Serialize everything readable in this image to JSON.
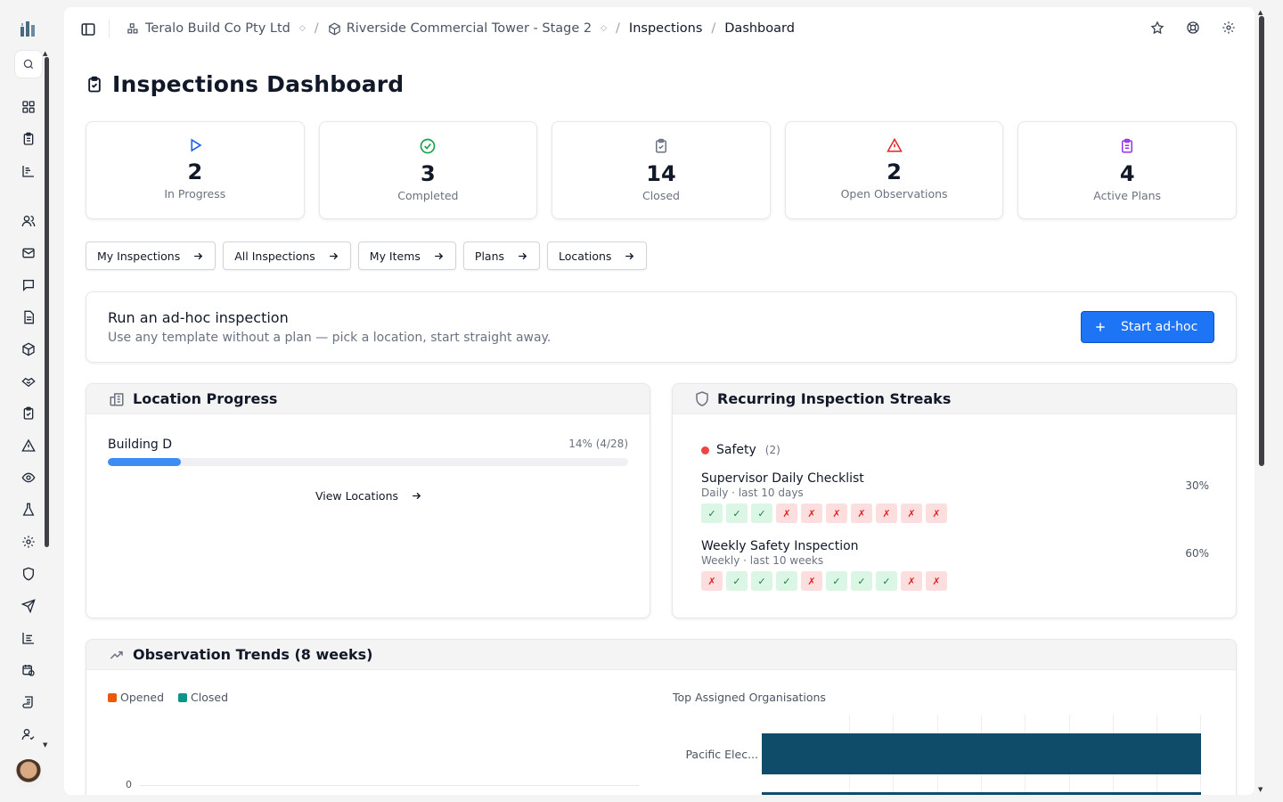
{
  "breadcrumb": {
    "org": "Teralo Build Co Pty Ltd",
    "project": "Riverside Commercial Tower - Stage 2",
    "section": "Inspections",
    "page": "Dashboard"
  },
  "page": {
    "title": "Inspections Dashboard"
  },
  "stats": [
    {
      "value": "2",
      "label": "In Progress",
      "icon": "play-icon",
      "color": "#2563eb"
    },
    {
      "value": "3",
      "label": "Completed",
      "icon": "check-circle-icon",
      "color": "#16a34a"
    },
    {
      "value": "14",
      "label": "Closed",
      "icon": "clipboard-check-icon",
      "color": "#6b7280"
    },
    {
      "value": "2",
      "label": "Open Observations",
      "icon": "alert-triangle-icon",
      "color": "#dc2626"
    },
    {
      "value": "4",
      "label": "Active Plans",
      "icon": "clipboard-list-icon",
      "color": "#9333ea"
    }
  ],
  "quick_links": [
    "My Inspections",
    "All Inspections",
    "My Items",
    "Plans",
    "Locations"
  ],
  "adhoc": {
    "title": "Run an ad-hoc inspection",
    "subtitle": "Use any template without a plan — pick a location, start straight away.",
    "button": "Start ad-hoc"
  },
  "location_progress": {
    "title": "Location Progress",
    "items": [
      {
        "name": "Building D",
        "progress_text": "14% (4/28)",
        "progress": 0.14
      }
    ],
    "link": "View Locations"
  },
  "streaks": {
    "title": "Recurring Inspection Streaks",
    "category": {
      "name": "Safety",
      "count": "(2)",
      "color": "#ef4444"
    },
    "items": [
      {
        "name": "Supervisor Daily Checklist",
        "meta": "Daily · last 10 days",
        "pct": "30%",
        "results": [
          "ok",
          "ok",
          "ok",
          "bad",
          "bad",
          "bad",
          "bad",
          "bad",
          "bad",
          "bad"
        ]
      },
      {
        "name": "Weekly Safety Inspection",
        "meta": "Weekly · last 10 weeks",
        "pct": "60%",
        "results": [
          "bad",
          "ok",
          "ok",
          "ok",
          "bad",
          "ok",
          "ok",
          "ok",
          "bad",
          "bad"
        ]
      }
    ],
    "ok_glyph": "✓",
    "bad_glyph": "✗"
  },
  "trends": {
    "title": "Observation Trends (8 weeks)",
    "legend": [
      {
        "name": "Opened",
        "color": "#ea580c"
      },
      {
        "name": "Closed",
        "color": "#0d9488"
      }
    ],
    "zero_label": "0",
    "org_title": "Top Assigned Organisations",
    "org_label": "Pacific Elec...",
    "bar_color": "#0f4c6a"
  },
  "chart_data": {
    "type": "bar",
    "title": "Top Assigned Organisations",
    "categories": [
      "Pacific Elec..."
    ],
    "values": [
      1
    ],
    "orientation": "horizontal"
  }
}
